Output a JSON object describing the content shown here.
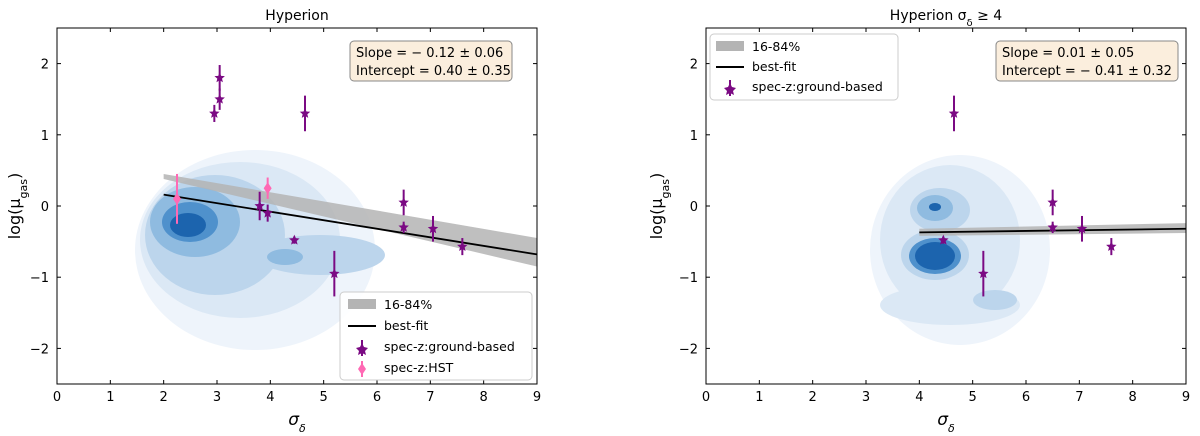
{
  "chart_data": [
    {
      "type": "scatter",
      "title": "Hyperion",
      "xlabel": "σ_δ",
      "ylabel": "log(μ_gas)",
      "xlim": [
        0,
        9
      ],
      "ylim": [
        -2.5,
        2.5
      ],
      "xticks": [
        0,
        1,
        2,
        3,
        4,
        5,
        6,
        7,
        8,
        9
      ],
      "yticks": [
        -2,
        -1,
        0,
        1,
        2
      ],
      "fit": {
        "slope": -0.12,
        "intercept": 0.4,
        "x_range": [
          2.0,
          9.0
        ],
        "band_low": [
          0.38,
          -0.85
        ],
        "band_high": [
          0.45,
          -0.45
        ]
      },
      "annotation": [
        "Slope = − 0.12 ± 0.06",
        "Intercept = 0.40 ± 0.35"
      ],
      "legend": {
        "position": "lower-right",
        "entries": [
          "16-84%",
          "best-fit",
          "spec-z:ground-based",
          "spec-z:HST"
        ]
      },
      "series": [
        {
          "name": "spec-z:ground-based",
          "marker": "star",
          "color": "#7b0a83",
          "points": [
            {
              "x": 2.95,
              "y": 1.3,
              "err": 0.12
            },
            {
              "x": 3.05,
              "y": 1.5,
              "err": 0.15
            },
            {
              "x": 3.05,
              "y": 1.8,
              "err": 0.18
            },
            {
              "x": 4.65,
              "y": 1.3,
              "err": 0.25
            },
            {
              "x": 3.8,
              "y": 0.0,
              "err": 0.2
            },
            {
              "x": 3.95,
              "y": -0.1,
              "err": 0.12
            },
            {
              "x": 4.45,
              "y": -0.48,
              "err": 0.05
            },
            {
              "x": 5.2,
              "y": -0.95,
              "err": 0.32
            },
            {
              "x": 6.5,
              "y": 0.05,
              "err": 0.18
            },
            {
              "x": 6.5,
              "y": -0.3,
              "err": 0.08
            },
            {
              "x": 7.05,
              "y": -0.32,
              "err": 0.18
            },
            {
              "x": 7.6,
              "y": -0.57,
              "err": 0.12
            }
          ]
        },
        {
          "name": "spec-z:HST",
          "marker": "diamond",
          "color": "#ff69b4",
          "points": [
            {
              "x": 2.25,
              "y": 0.1,
              "err": 0.35
            },
            {
              "x": 3.95,
              "y": 0.25,
              "err": 0.15
            }
          ]
        }
      ]
    },
    {
      "type": "scatter",
      "title": "Hyperion σ_δ ≥ 4",
      "xlabel": "σ_δ",
      "ylabel": "log(μ_gas)",
      "xlim": [
        0,
        9
      ],
      "ylim": [
        -2.5,
        2.5
      ],
      "xticks": [
        0,
        1,
        2,
        3,
        4,
        5,
        6,
        7,
        8,
        9
      ],
      "yticks": [
        -2,
        -1,
        0,
        1,
        2
      ],
      "fit": {
        "slope": 0.01,
        "intercept": -0.41,
        "x_range": [
          4.0,
          9.0
        ],
        "band_low": [
          -0.42,
          -0.38
        ],
        "band_high": [
          -0.32,
          -0.24
        ]
      },
      "annotation": [
        "Slope = 0.01 ± 0.05",
        "Intercept = − 0.41 ± 0.32"
      ],
      "legend": {
        "position": "upper-left",
        "entries": [
          "16-84%",
          "best-fit",
          "spec-z:ground-based"
        ]
      },
      "series": [
        {
          "name": "spec-z:ground-based",
          "marker": "star",
          "color": "#7b0a83",
          "points": [
            {
              "x": 4.65,
              "y": 1.3,
              "err": 0.25
            },
            {
              "x": 4.45,
              "y": -0.48,
              "err": 0.05
            },
            {
              "x": 5.2,
              "y": -0.95,
              "err": 0.32
            },
            {
              "x": 6.5,
              "y": 0.05,
              "err": 0.18
            },
            {
              "x": 6.5,
              "y": -0.3,
              "err": 0.08
            },
            {
              "x": 7.05,
              "y": -0.32,
              "err": 0.18
            },
            {
              "x": 7.6,
              "y": -0.57,
              "err": 0.12
            }
          ]
        }
      ]
    }
  ],
  "colors": {
    "marker": "#7b0a83",
    "hst": "#ff69b4",
    "band": "#b4b4b4",
    "annot_bg": "#fbeedd",
    "kde": [
      "#eef4fb",
      "#dbe8f5",
      "#bcd5ec",
      "#8fbbe0",
      "#4f91cc",
      "#1c64ae"
    ]
  }
}
